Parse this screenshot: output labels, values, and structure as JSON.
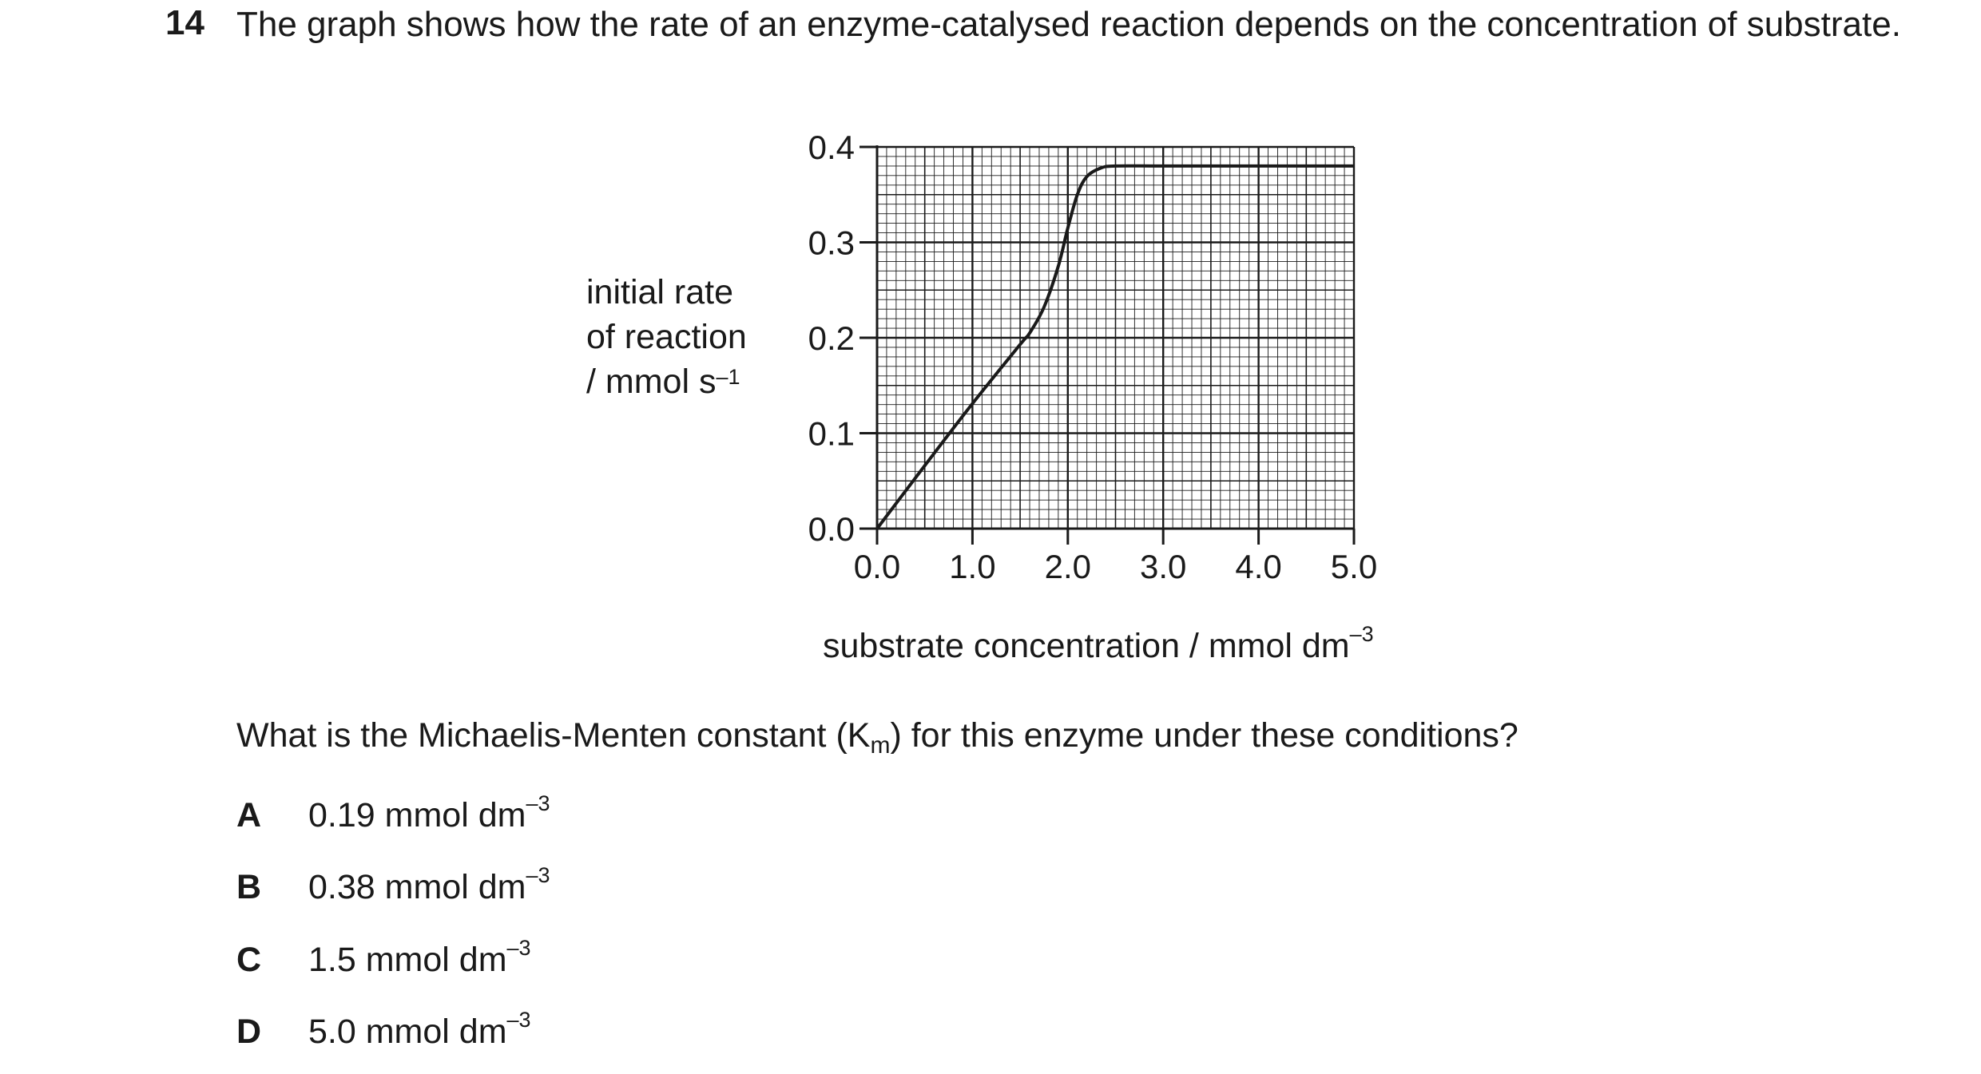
{
  "question": {
    "number": "14",
    "stem": "The graph shows how the rate of an enzyme-catalysed reaction depends on the concentration of substrate.",
    "prompt_before": "What is the Michaelis-Menten constant (K",
    "prompt_sub": "m",
    "prompt_after": ") for this enzyme under these conditions?"
  },
  "options": [
    {
      "letter": "A",
      "value": "0.19 mmol dm",
      "exp": "–3"
    },
    {
      "letter": "B",
      "value": "0.38 mmol dm",
      "exp": "–3"
    },
    {
      "letter": "C",
      "value": "1.5 mmol dm",
      "exp": "–3"
    },
    {
      "letter": "D",
      "value": "5.0 mmol dm",
      "exp": "–3"
    }
  ],
  "chart_data": {
    "type": "line",
    "title": "",
    "ylabel_lines": [
      "initial rate",
      "of reaction",
      "/ mmol s"
    ],
    "ylabel_exp": "–1",
    "xlabel": "substrate concentration / mmol dm",
    "xlabel_exp": "–3",
    "xlim": [
      0,
      5
    ],
    "ylim": [
      0,
      0.4
    ],
    "x_ticks": [
      "0.0",
      "1.0",
      "2.0",
      "3.0",
      "4.0",
      "5.0"
    ],
    "y_ticks": [
      "0.0",
      "0.1",
      "0.2",
      "0.3",
      "0.4"
    ],
    "grid": true,
    "series": [
      {
        "x": [
          0.0,
          0.5,
          1.0,
          1.5,
          1.6,
          1.75,
          1.9,
          2.0,
          2.1,
          2.2,
          2.35,
          2.5,
          3.0,
          4.0,
          5.0
        ],
        "y": [
          0.0,
          0.066,
          0.131,
          0.193,
          0.205,
          0.232,
          0.275,
          0.315,
          0.35,
          0.369,
          0.378,
          0.38,
          0.38,
          0.38,
          0.38
        ]
      }
    ],
    "colors": {
      "ink": "#1a1a1a"
    }
  }
}
